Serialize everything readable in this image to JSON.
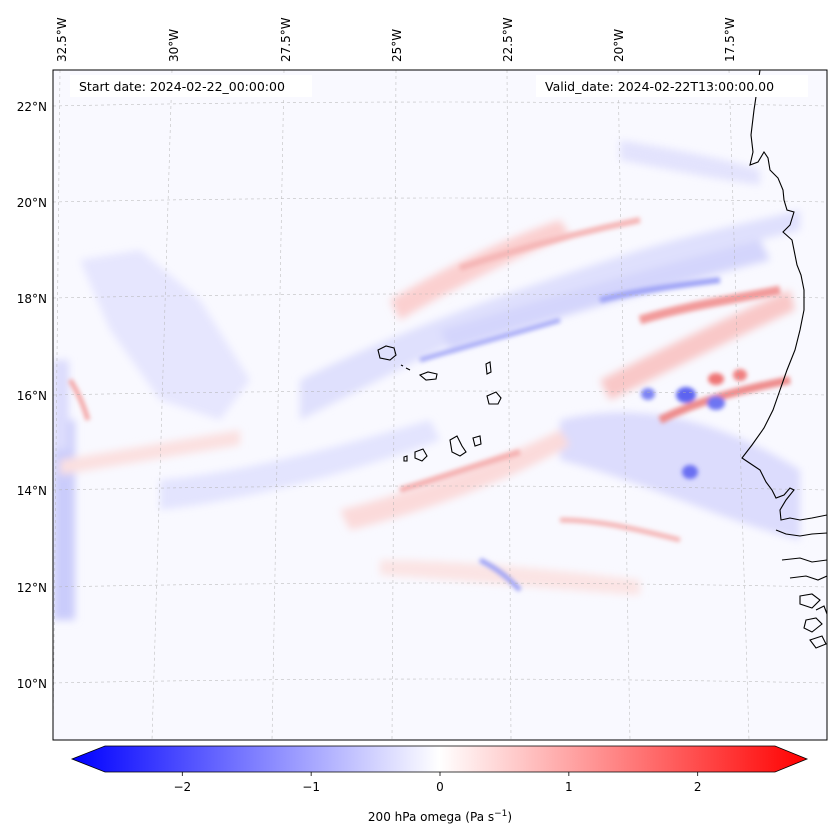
{
  "map": {
    "start_date_text": "Start date: 2024-02-22_00:00:00",
    "valid_date_text": "Valid_date: 2024-02-22T13:00:00.00",
    "longitude_labels": [
      "32.5°W",
      "30°W",
      "27.5°W",
      "25°W",
      "22.5°W",
      "20°W",
      "17.5°W"
    ],
    "latitude_labels": [
      "22°N",
      "20°N",
      "18°N",
      "16°N",
      "14°N",
      "12°N",
      "10°N"
    ],
    "variable": "200 hPa omega",
    "gridlines": true
  },
  "colorbar": {
    "label_main": "200 hPa omega (Pa s",
    "label_sup": "−1",
    "label_close": ")",
    "tick_labels": [
      "−2",
      "−1",
      "0",
      "1",
      "2"
    ],
    "ticks": [
      -2,
      -1,
      0,
      1,
      2
    ],
    "range": [
      -2.6,
      2.6
    ],
    "extend": "both",
    "colormap": "bwr",
    "low_color": "#0000ff",
    "mid_color": "#ffffff",
    "high_color": "#ff0000"
  },
  "colors": {
    "coastline": "#000000",
    "gridline": "#b0b0b0"
  }
}
